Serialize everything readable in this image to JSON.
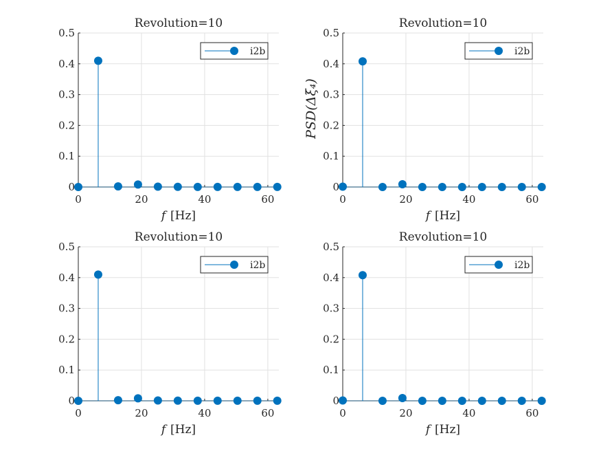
{
  "chart_data": [
    {
      "type": "stem",
      "title": "Revolution=10",
      "xlabel": "f [Hz]",
      "ylabel": "",
      "xlim": [
        0,
        63.5
      ],
      "ylim": [
        0,
        0.5
      ],
      "xticks": [
        0,
        20,
        40,
        60
      ],
      "yticks": [
        0,
        0.1,
        0.2,
        0.3,
        0.4,
        0.5
      ],
      "grid": true,
      "legend_position": "top-right",
      "series": [
        {
          "name": "i2b",
          "color": "#0072BD",
          "x": [
            0,
            6.3,
            12.6,
            18.9,
            25.2,
            31.5,
            37.8,
            44.1,
            50.4,
            56.7,
            63.0
          ],
          "y": [
            0.0,
            0.41,
            0.002,
            0.008,
            0.001,
            0.0005,
            0.0004,
            0.0003,
            0.0003,
            0.0002,
            0.0002
          ]
        }
      ]
    },
    {
      "type": "stem",
      "title": "Revolution=10",
      "xlabel": "f [Hz]",
      "ylabel": "PSD(Δξ̇₄)",
      "xlim": [
        0,
        63.5
      ],
      "ylim": [
        0,
        0.5
      ],
      "xticks": [
        0,
        20,
        40,
        60
      ],
      "yticks": [
        0,
        0.1,
        0.2,
        0.3,
        0.4,
        0.5
      ],
      "grid": true,
      "legend_position": "top-right",
      "series": [
        {
          "name": "i2b",
          "color": "#0072BD",
          "x": [
            0,
            6.3,
            12.6,
            18.9,
            25.2,
            31.5,
            37.8,
            44.1,
            50.4,
            56.7,
            63.0
          ],
          "y": [
            0.001,
            0.408,
            0.0,
            0.009,
            0.0,
            0.0,
            0.0,
            0.0,
            0.0,
            0.0,
            0.0
          ]
        }
      ]
    },
    {
      "type": "stem",
      "title": "Revolution=10",
      "xlabel": "f [Hz]",
      "ylabel": "",
      "xlim": [
        0,
        63.5
      ],
      "ylim": [
        0,
        0.5
      ],
      "xticks": [
        0,
        20,
        40,
        60
      ],
      "yticks": [
        0,
        0.1,
        0.2,
        0.3,
        0.4,
        0.5
      ],
      "grid": true,
      "legend_position": "top-right",
      "series": [
        {
          "name": "i2b",
          "color": "#0072BD",
          "x": [
            0,
            6.3,
            12.6,
            18.9,
            25.2,
            31.5,
            37.8,
            44.1,
            50.4,
            56.7,
            63.0
          ],
          "y": [
            0.0,
            0.41,
            0.002,
            0.008,
            0.001,
            0.0005,
            0.0004,
            0.0003,
            0.0003,
            0.0002,
            0.0002
          ]
        }
      ]
    },
    {
      "type": "stem",
      "title": "Revolution=10",
      "xlabel": "f [Hz]",
      "ylabel": "",
      "xlim": [
        0,
        63.5
      ],
      "ylim": [
        0,
        0.5
      ],
      "xticks": [
        0,
        20,
        40,
        60
      ],
      "yticks": [
        0,
        0.1,
        0.2,
        0.3,
        0.4,
        0.5
      ],
      "grid": true,
      "legend_position": "top-right",
      "series": [
        {
          "name": "i2b",
          "color": "#0072BD",
          "x": [
            0,
            6.3,
            12.6,
            18.9,
            25.2,
            31.5,
            37.8,
            44.1,
            50.4,
            56.7,
            63.0
          ],
          "y": [
            0.001,
            0.408,
            0.0,
            0.009,
            0.0,
            0.0,
            0.0,
            0.0,
            0.0,
            0.0,
            0.0
          ]
        }
      ]
    }
  ]
}
